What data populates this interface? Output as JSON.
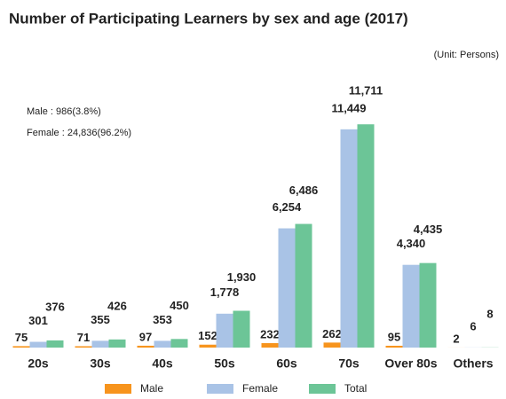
{
  "chart_data": {
    "type": "bar",
    "title": "Number of Participating Learners by sex and age (2017)",
    "unit": "(Unit: Persons)",
    "annotations": [
      "Male : 986(3.8%)",
      "Female : 24,836(96.2%)"
    ],
    "categories": [
      "20s",
      "30s",
      "40s",
      "50s",
      "60s",
      "70s",
      "Over 80s",
      "Others"
    ],
    "series": [
      {
        "name": "Male",
        "color": "#f7941d",
        "values": [
          75,
          71,
          97,
          152,
          232,
          262,
          95,
          2
        ]
      },
      {
        "name": "Female",
        "color": "#a9c3e6",
        "values": [
          301,
          355,
          353,
          1778,
          6254,
          11449,
          4340,
          6
        ],
        "value_labels": [
          "301",
          "355",
          "353",
          "1,778",
          "6,254",
          "11,449",
          "4,340",
          "6"
        ]
      },
      {
        "name": "Total",
        "color": "#6cc597",
        "values": [
          376,
          426,
          450,
          1930,
          6486,
          11711,
          4435,
          8
        ],
        "value_labels": [
          "376",
          "426",
          "450",
          "1,930",
          "6,486",
          "11,711",
          "4,435",
          "8"
        ]
      }
    ],
    "ylim": [
      0,
      12000
    ]
  }
}
